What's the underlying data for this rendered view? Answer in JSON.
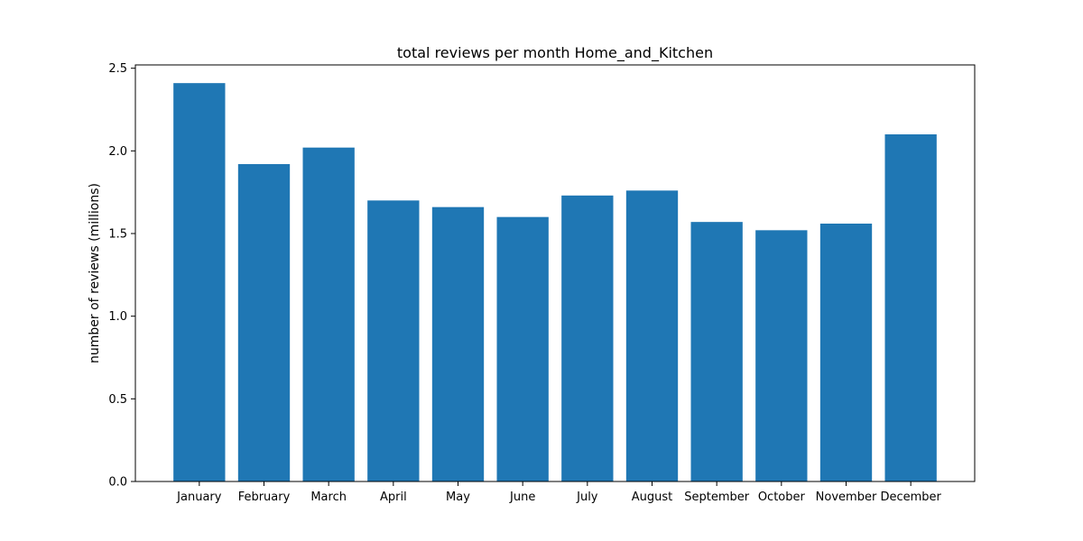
{
  "chart_data": {
    "type": "bar",
    "title": "total reviews per month Home_and_Kitchen",
    "xlabel": "",
    "ylabel": "number of reviews (millions)",
    "ylim": [
      0,
      2.52
    ],
    "yticks": [
      "0.0",
      "0.5",
      "1.0",
      "1.5",
      "2.0",
      "2.5"
    ],
    "categories": [
      "January",
      "February",
      "March",
      "April",
      "May",
      "June",
      "July",
      "August",
      "September",
      "October",
      "November",
      "December"
    ],
    "values": [
      2.41,
      1.92,
      2.02,
      1.7,
      1.66,
      1.6,
      1.73,
      1.76,
      1.57,
      1.52,
      1.56,
      2.1
    ],
    "bar_color": "#1f77b4",
    "grid": false,
    "legend": false
  }
}
